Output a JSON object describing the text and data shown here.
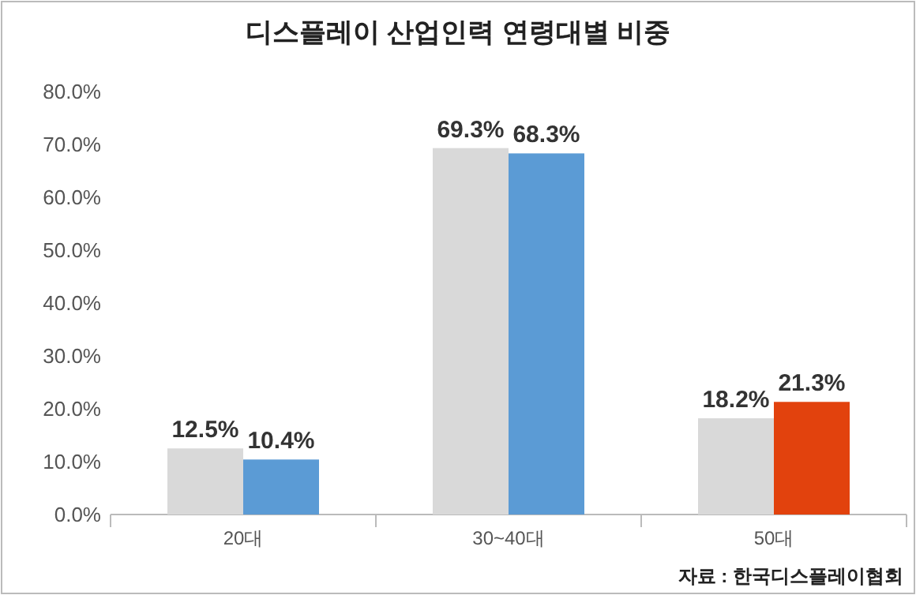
{
  "chart_data": {
    "type": "bar",
    "title": "디스플레이 산업인력 연령대별 비중",
    "categories": [
      "20대",
      "30~40대",
      "50대"
    ],
    "series": [
      {
        "colors": [
          "#d9d9d9",
          "#d9d9d9",
          "#d9d9d9"
        ],
        "values": [
          12.5,
          69.3,
          18.2
        ],
        "value_labels": [
          "12.5%",
          "69.3%",
          "18.2%"
        ]
      },
      {
        "colors": [
          "#5b9bd5",
          "#5b9bd5",
          "#e2420d"
        ],
        "values": [
          10.4,
          68.3,
          21.3
        ],
        "value_labels": [
          "10.4%",
          "68.3%",
          "21.3%"
        ]
      }
    ],
    "ylim": [
      0,
      80
    ],
    "yticks": [
      {
        "value": 0,
        "label": "0.0%"
      },
      {
        "value": 10,
        "label": "10.0%"
      },
      {
        "value": 20,
        "label": "20.0%"
      },
      {
        "value": 30,
        "label": "30.0%"
      },
      {
        "value": 40,
        "label": "40.0%"
      },
      {
        "value": 50,
        "label": "50.0%"
      },
      {
        "value": 60,
        "label": "60.0%"
      },
      {
        "value": 70,
        "label": "70.0%"
      },
      {
        "value": 80,
        "label": "80.0%"
      }
    ],
    "grid": false,
    "annotations": [
      "자료 : 한국디스플레이협회"
    ]
  }
}
